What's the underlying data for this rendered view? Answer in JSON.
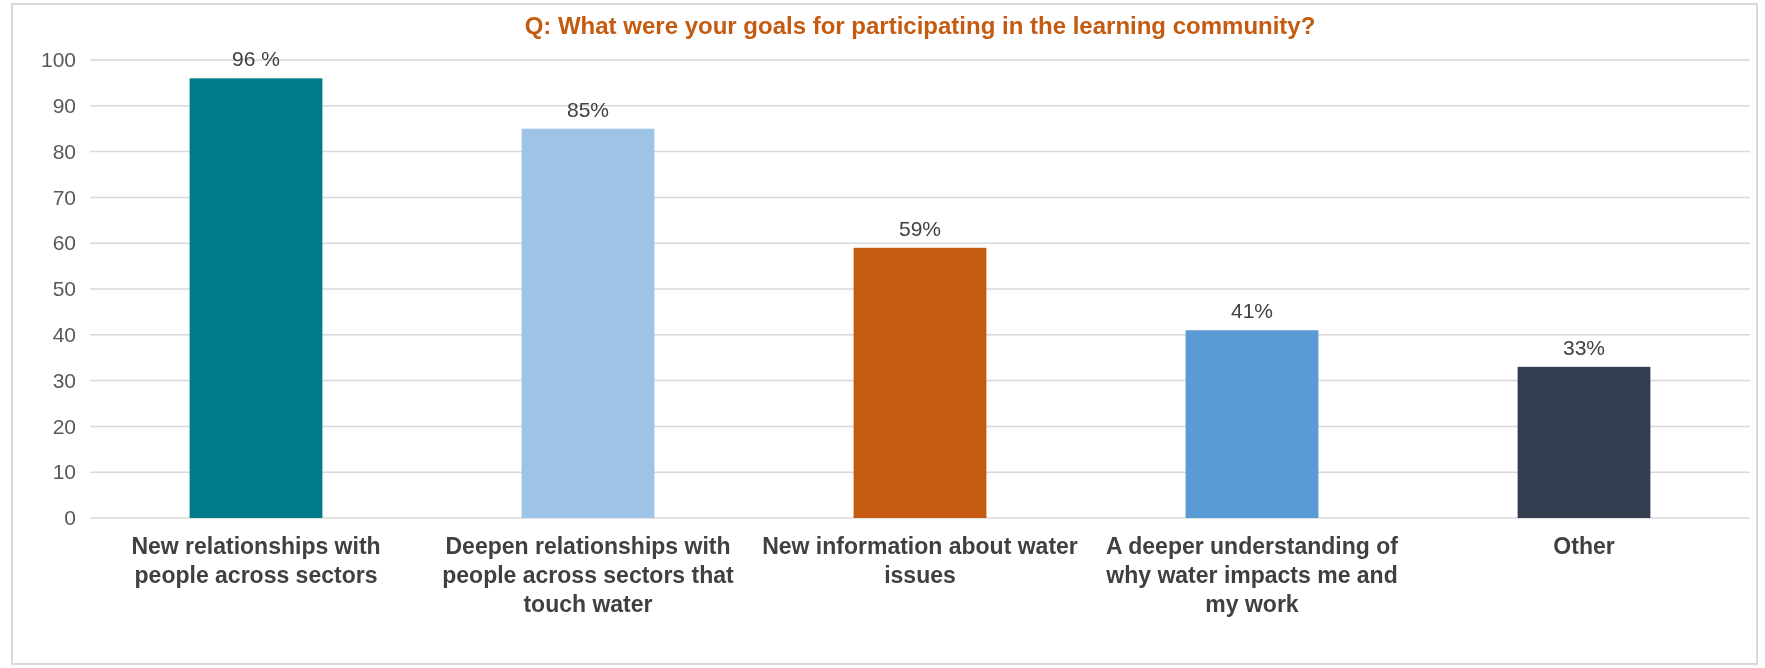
{
  "chart_data": {
    "type": "bar",
    "title": "Q: What were your goals for participating in the learning community?",
    "categories": [
      "New relationships with people across sectors",
      "Deepen relationships with people across sectors that touch water",
      "New information about water issues",
      "A deeper understanding of why water impacts me and my work",
      "Other"
    ],
    "values": [
      96,
      85,
      59,
      41,
      33
    ],
    "colors": [
      "#007b8a",
      "#9dc3e6",
      "#c55a11",
      "#5b9bd5",
      "#333f50"
    ],
    "value_labels": [
      "96 %",
      "85%",
      "59%",
      "41%",
      "33%"
    ],
    "ylim": [
      0,
      100
    ],
    "yticks": [
      0,
      10,
      20,
      30,
      40,
      50,
      60,
      70,
      80,
      90,
      100
    ],
    "grid": "y"
  }
}
